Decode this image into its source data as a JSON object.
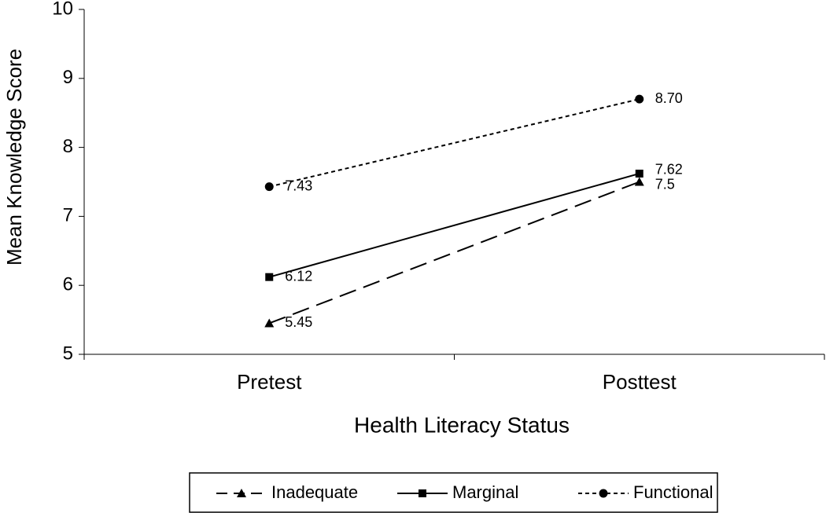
{
  "chart_data": {
    "type": "line",
    "x_label": "Health Literacy Status",
    "y_label": "Mean Knowledge Score",
    "categories": [
      "Pretest",
      "Posttest"
    ],
    "series": [
      {
        "name": "Inadequate",
        "color": "#000000",
        "values": [
          5.45,
          7.5
        ]
      },
      {
        "name": "Marginal",
        "color": "#000000",
        "values": [
          6.12,
          7.62
        ]
      },
      {
        "name": "Functional",
        "color": "#000000",
        "values": [
          7.43,
          8.7
        ],
        "value_labels": [
          "7.43",
          "8.70"
        ]
      }
    ],
    "ylim": [
      5,
      10
    ],
    "yticks": [
      5,
      6,
      7,
      8,
      9,
      10
    ],
    "grid": false,
    "legend": "bottom"
  }
}
